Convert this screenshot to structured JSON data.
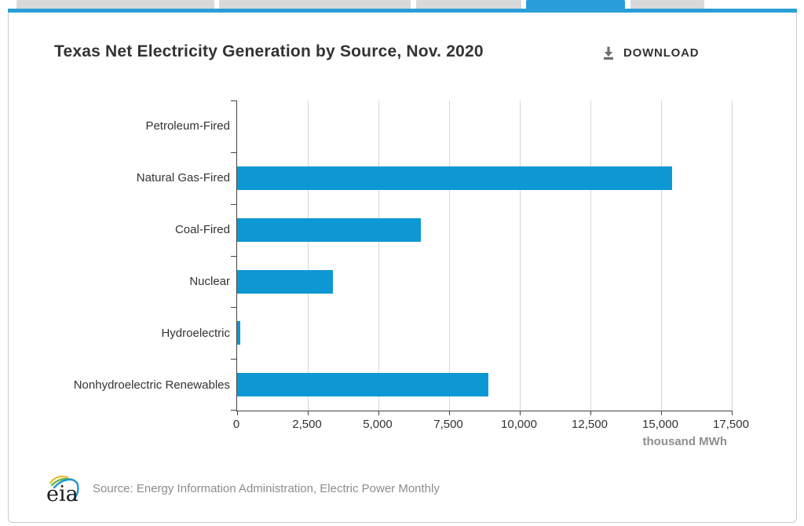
{
  "header": {
    "download_label": "DOWNLOAD"
  },
  "tabs": {
    "active_index": 3,
    "count": 5
  },
  "chart_data": {
    "type": "bar",
    "orientation": "horizontal",
    "title": "Texas Net Electricity Generation by Source, Nov. 2020",
    "categories": [
      "Petroleum-Fired",
      "Natural Gas-Fired",
      "Coal-Fired",
      "Nuclear",
      "Hydroelectric",
      "Nonhydroelectric Renewables"
    ],
    "values": [
      0,
      15400,
      6500,
      3400,
      100,
      8900
    ],
    "xlabel": "thousand MWh",
    "xlim": [
      0,
      17500
    ],
    "xticks": [
      0,
      2500,
      5000,
      7500,
      10000,
      12500,
      15000,
      17500
    ],
    "xtick_labels": [
      "0",
      "2,500",
      "5,000",
      "7,500",
      "10,000",
      "12,500",
      "15,000",
      "17,500"
    ],
    "grid": true,
    "legend": "none",
    "bar_color": "#0d98d4"
  },
  "footer": {
    "logo_text": "eia",
    "source_text": "Source: Energy Information Administration, Electric Power Monthly"
  },
  "colors": {
    "accent_blue": "#2a9ed8",
    "tab_gray": "#d9d9d9",
    "axis": "#444444",
    "gridline": "#d6d6d6"
  }
}
